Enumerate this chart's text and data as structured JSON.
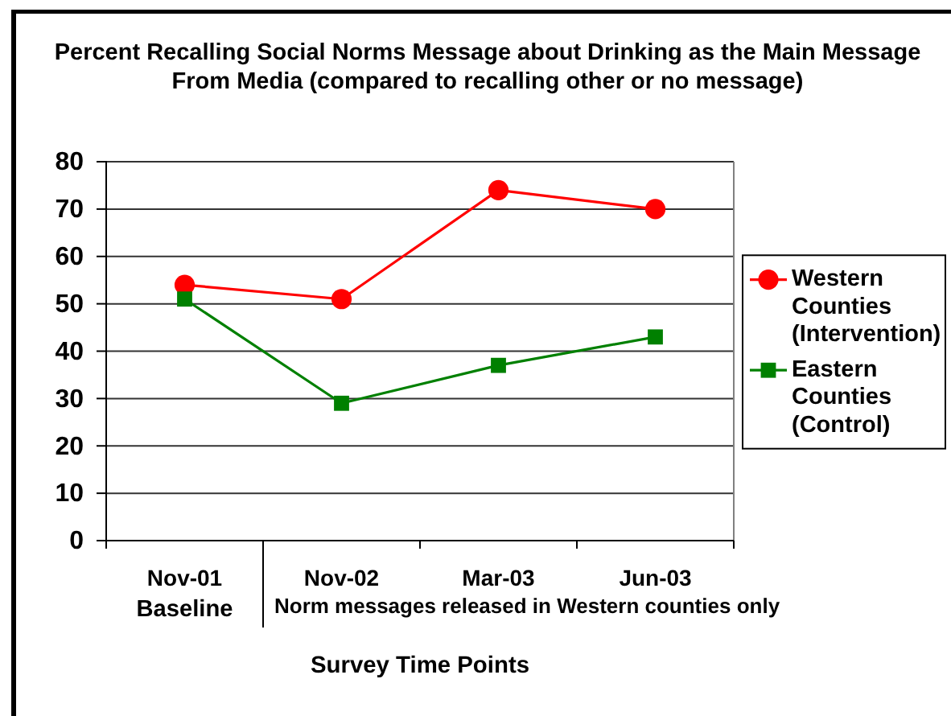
{
  "chart_data": {
    "type": "line",
    "title": "Percent Recalling Social Norms Message about Drinking as the Main Message From Media (compared to recalling other or no message)",
    "xlabel": "Survey Time Points",
    "categories": [
      "Nov-01",
      "Nov-02",
      "Mar-03",
      "Jun-03"
    ],
    "series": [
      {
        "name": "Western Counties (Intervention)",
        "color": "#ff0000",
        "marker": "circle",
        "values": [
          54,
          51,
          74,
          70
        ]
      },
      {
        "name": "Eastern Counties (Control)",
        "color": "#008000",
        "marker": "square",
        "values": [
          51,
          29,
          37,
          43
        ]
      }
    ],
    "ylim": [
      0,
      80
    ],
    "yticks": [
      0,
      10,
      20,
      30,
      40,
      50,
      60,
      70,
      80
    ],
    "grid": "y",
    "legend": "right",
    "annotations": [
      "Baseline",
      "Norm messages released in Western counties only"
    ]
  }
}
